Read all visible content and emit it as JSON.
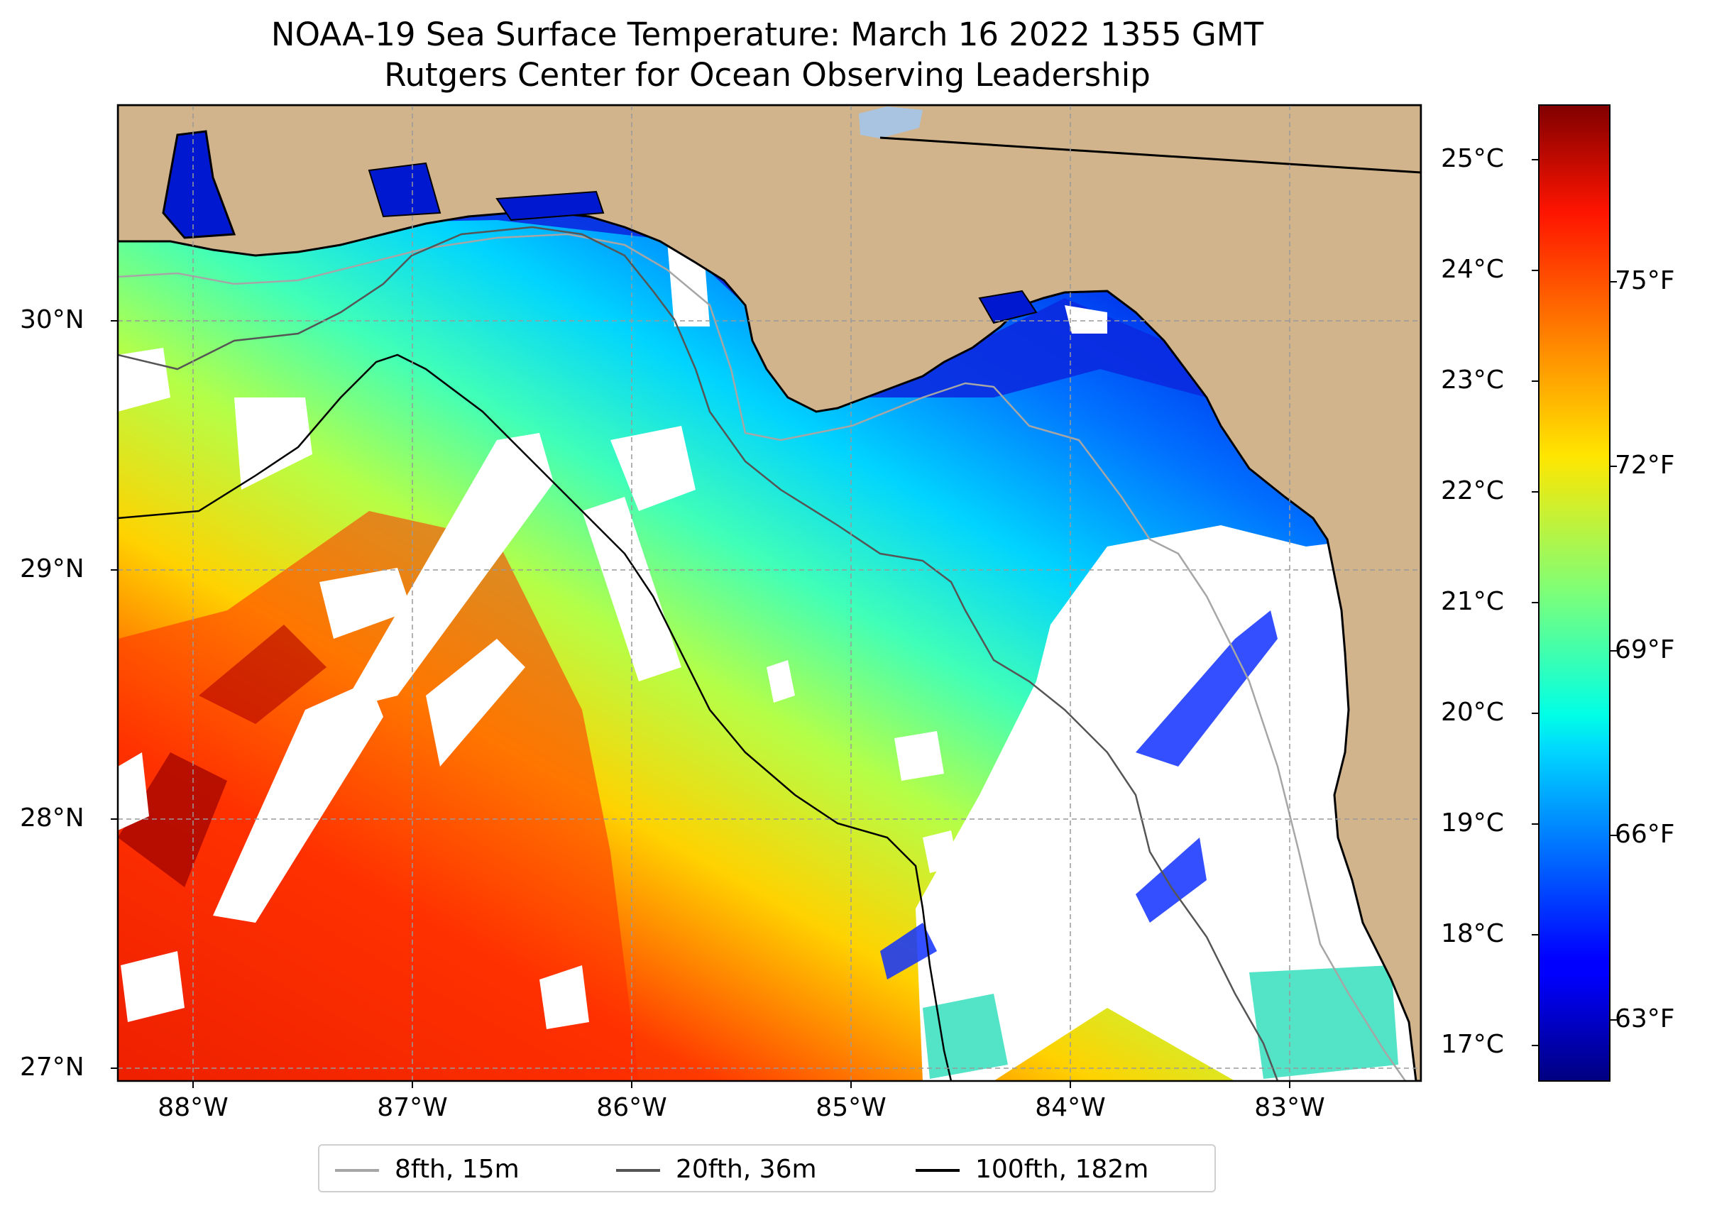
{
  "title": {
    "line1": "NOAA-19 Sea Surface Temperature: March 16 2022 1355 GMT",
    "line2": "Rutgers Center for Ocean Observing Leadership"
  },
  "map": {
    "lon_range": [
      -88.33,
      -82.4
    ],
    "lat_range": [
      26.93,
      30.85
    ],
    "latitude_labels": [
      "30°N",
      "29°N",
      "28°N",
      "27°N"
    ],
    "longitude_labels": [
      "88°W",
      "87°W",
      "86°W",
      "85°W",
      "84°W",
      "83°W"
    ],
    "colors": {
      "land": "#d2b48c",
      "no_data": "#ffffff",
      "coastline": "#000000",
      "lake": "#a8c4e0"
    }
  },
  "colorbar": {
    "colormap": "jet",
    "celsius_range": [
      16.7,
      25.5
    ],
    "celsius_labels": [
      "25°C",
      "24°C",
      "23°C",
      "22°C",
      "21°C",
      "20°C",
      "19°C",
      "18°C",
      "17°C"
    ],
    "fahrenheit_labels": [
      "75°F",
      "72°F",
      "69°F",
      "66°F",
      "63°F"
    ]
  },
  "legend": [
    {
      "label": "8fth, 15m",
      "color": "#a6a6a6"
    },
    {
      "label": "20fth, 36m",
      "color": "#555555"
    },
    {
      "label": "100fth, 182m",
      "color": "#000000"
    }
  ]
}
